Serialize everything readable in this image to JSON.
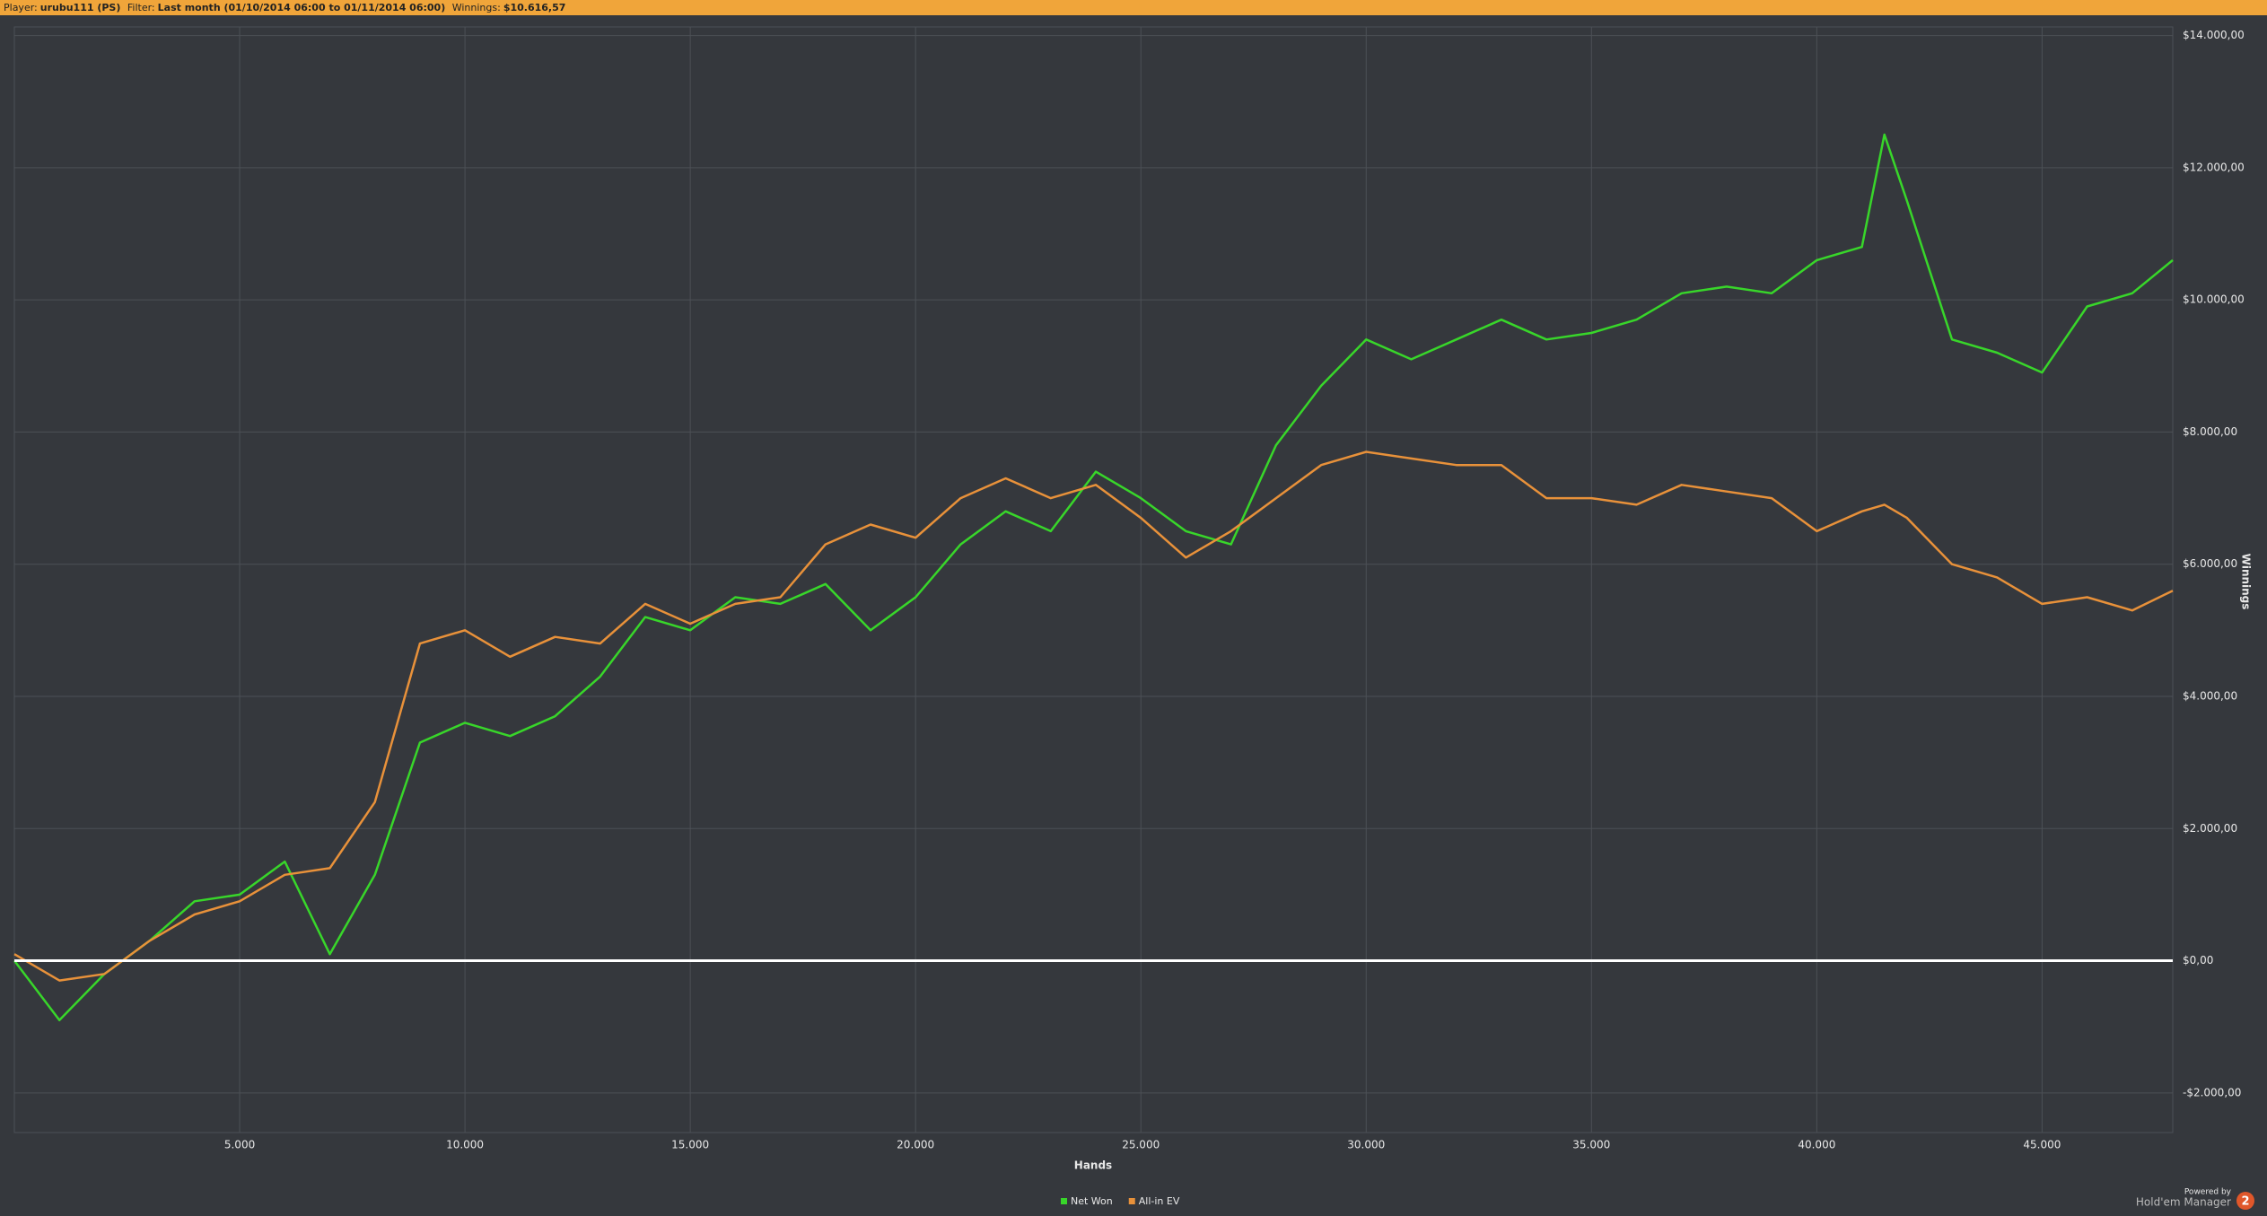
{
  "header": {
    "player_label": "Player:",
    "player": "urubu111 (PS)",
    "filter_label": "Filter:",
    "filter": "Last month (01/10/2014 06:00 to 01/11/2014 06:00)",
    "winnings_label": "Winnings:",
    "winnings": "$10.616,57"
  },
  "watermark": {
    "powered": "Powered by",
    "product": "Hold'em Manager",
    "version": "2"
  },
  "chart_data": {
    "type": "line",
    "x_label": "Hands",
    "y_label": "Winnings",
    "x": [
      0,
      1000,
      2000,
      3000,
      4000,
      5000,
      6000,
      7000,
      8000,
      9000,
      10000,
      11000,
      12000,
      13000,
      14000,
      15000,
      16000,
      17000,
      18000,
      19000,
      20000,
      21000,
      22000,
      23000,
      24000,
      25000,
      26000,
      27000,
      28000,
      29000,
      30000,
      31000,
      32000,
      33000,
      34000,
      35000,
      36000,
      37000,
      38000,
      39000,
      40000,
      41000,
      41500,
      42000,
      43000,
      44000,
      45000,
      46000,
      47000,
      47900
    ],
    "series": [
      {
        "name": "Net Won",
        "color": "#38d62a",
        "values": [
          0,
          -900,
          -200,
          300,
          900,
          1000,
          1500,
          100,
          1300,
          3300,
          3600,
          3400,
          3700,
          4300,
          5200,
          5000,
          5500,
          5400,
          5700,
          5000,
          5500,
          6300,
          6800,
          6500,
          7400,
          7000,
          6500,
          6300,
          7800,
          8700,
          9400,
          9100,
          9400,
          9700,
          9400,
          9500,
          9700,
          10100,
          10200,
          10100,
          10600,
          10800,
          12500,
          11500,
          9400,
          9200,
          8900,
          9900,
          10100,
          10600
        ]
      },
      {
        "name": "All-in EV",
        "color": "#e8913a",
        "values": [
          100,
          -300,
          -200,
          300,
          700,
          900,
          1300,
          1400,
          2400,
          4800,
          5000,
          4600,
          4900,
          4800,
          5400,
          5100,
          5400,
          5500,
          6300,
          6600,
          6400,
          7000,
          7300,
          7000,
          7200,
          6700,
          6100,
          6500,
          7000,
          7500,
          7700,
          7600,
          7500,
          7500,
          7000,
          7000,
          6900,
          7200,
          7100,
          7000,
          6500,
          6800,
          6900,
          6700,
          6000,
          5800,
          5400,
          5500,
          5300,
          5600
        ]
      }
    ],
    "xlim": [
      0,
      47900
    ],
    "ylim": [
      -2600,
      14130
    ],
    "xticks": [
      {
        "value": 5000,
        "label": "5.000"
      },
      {
        "value": 10000,
        "label": "10.000"
      },
      {
        "value": 15000,
        "label": "15.000"
      },
      {
        "value": 20000,
        "label": "20.000"
      },
      {
        "value": 25000,
        "label": "25.000"
      },
      {
        "value": 30000,
        "label": "30.000"
      },
      {
        "value": 35000,
        "label": "35.000"
      },
      {
        "value": 40000,
        "label": "40.000"
      },
      {
        "value": 45000,
        "label": "45.000"
      }
    ],
    "yticks": [
      {
        "value": -2000,
        "label": "-$2.000,00"
      },
      {
        "value": 0,
        "label": "$0,00"
      },
      {
        "value": 2000,
        "label": "$2.000,00"
      },
      {
        "value": 4000,
        "label": "$4.000,00"
      },
      {
        "value": 6000,
        "label": "$6.000,00"
      },
      {
        "value": 8000,
        "label": "$8.000,00"
      },
      {
        "value": 10000,
        "label": "$10.000,00"
      },
      {
        "value": 12000,
        "label": "$12.000,00"
      },
      {
        "value": 14000,
        "label": "$14.000,00"
      }
    ],
    "grid": true
  }
}
